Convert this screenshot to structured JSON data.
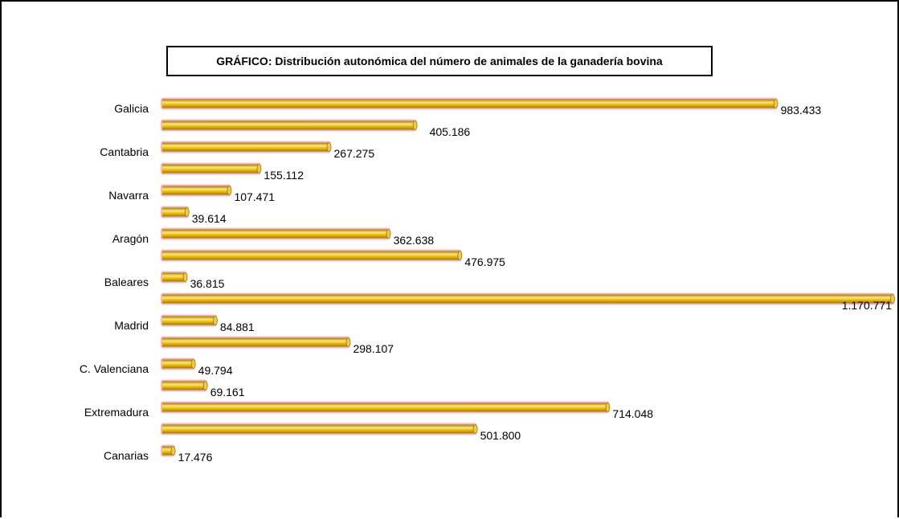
{
  "chart_data": {
    "type": "bar",
    "orientation": "horizontal",
    "title": "GRÁFICO: Distribución autonómica del número de animales de la ganadería bovina",
    "xlabel": "",
    "ylabel": "",
    "grid": false,
    "legend": "none",
    "xlim": [
      0,
      1172000
    ],
    "categories": [
      "Galicia",
      "",
      "Cantabria",
      "",
      "Navarra",
      "",
      "Aragón",
      "",
      "Baleares",
      "",
      "Madrid",
      "",
      "C. Valenciana",
      "",
      "Extremadura",
      "",
      "Canarias"
    ],
    "values": [
      983433,
      405186,
      267275,
      155112,
      107471,
      39614,
      362638,
      476975,
      36815,
      1170771,
      84881,
      298107,
      49794,
      69161,
      714048,
      501800,
      17476
    ],
    "value_labels": [
      "983.433",
      "405.186",
      "267.275",
      "155.112",
      "107.471",
      "39.614",
      "362.638",
      "476.975",
      "36.815",
      "1.170.771",
      "84.881",
      "298.107",
      "49.794",
      "69.161",
      "714.048",
      "501.800",
      "17.476"
    ],
    "colors": {
      "bar": "#e6b800",
      "bar_highlight": "#ffe680",
      "bar_shadow": "#a07800",
      "bar_outline": "#f4b8c8",
      "end_cap": "#f0c850"
    }
  }
}
